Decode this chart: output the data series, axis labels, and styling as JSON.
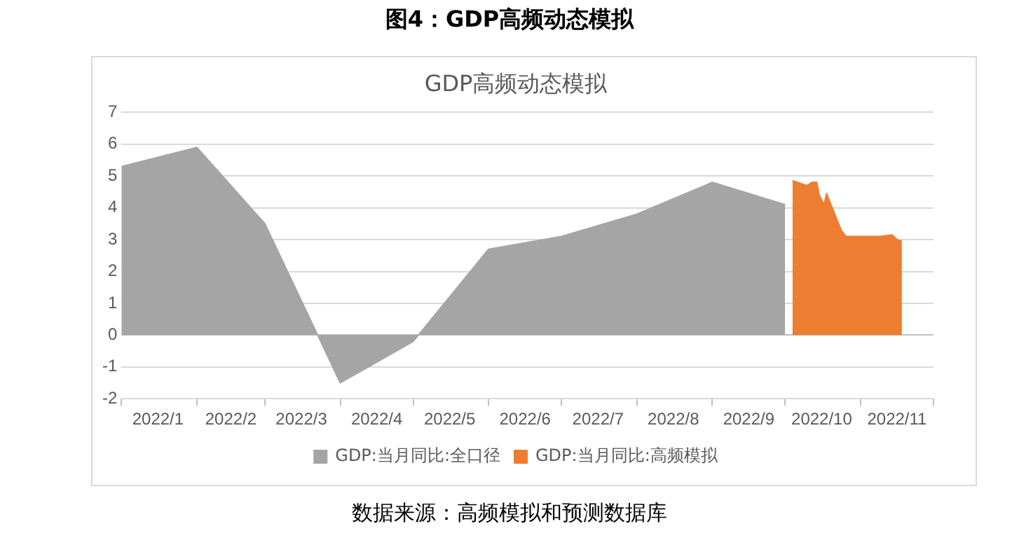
{
  "chart_data": {
    "type": "area",
    "title": "图4：GDP高频动态模拟",
    "subtitle": "GDP高频动态模拟",
    "annotations": [
      "数据来源：高频模拟和预测数据库"
    ],
    "xlim": [
      "2022-01-01",
      "2022-12-01"
    ],
    "xticks": [
      {
        "value": "2022-01-01",
        "label": null
      },
      {
        "value": "2022-01-16",
        "label": "2022/1"
      },
      {
        "value": "2022-02-01",
        "label": null
      },
      {
        "value": "2022-02-15",
        "label": "2022/2"
      },
      {
        "value": "2022-03-01",
        "label": null
      },
      {
        "value": "2022-03-16",
        "label": "2022/3"
      },
      {
        "value": "2022-04-01",
        "label": null
      },
      {
        "value": "2022-04-16",
        "label": "2022/4"
      },
      {
        "value": "2022-05-01",
        "label": null
      },
      {
        "value": "2022-05-16",
        "label": "2022/5"
      },
      {
        "value": "2022-06-01",
        "label": null
      },
      {
        "value": "2022-06-16",
        "label": "2022/6"
      },
      {
        "value": "2022-07-01",
        "label": null
      },
      {
        "value": "2022-07-16",
        "label": "2022/7"
      },
      {
        "value": "2022-08-01",
        "label": null
      },
      {
        "value": "2022-08-16",
        "label": "2022/8"
      },
      {
        "value": "2022-09-01",
        "label": null
      },
      {
        "value": "2022-09-16",
        "label": "2022/9"
      },
      {
        "value": "2022-10-01",
        "label": null
      },
      {
        "value": "2022-10-16",
        "label": "2022/10"
      },
      {
        "value": "2022-11-01",
        "label": null
      },
      {
        "value": "2022-11-16",
        "label": "2022/11"
      },
      {
        "value": "2022-12-01",
        "label": null
      }
    ],
    "ylim": [
      -2,
      7
    ],
    "yticks": [
      -2,
      -1,
      0,
      1,
      2,
      3,
      4,
      5,
      6,
      7
    ],
    "grid": "y",
    "legend": "bottom",
    "series": [
      {
        "name": "GDP:当月同比:全口径",
        "color": "#a5a5a5",
        "x": [
          "2022-01-01",
          "2022-02-01",
          "2022-03-01",
          "2022-04-01",
          "2022-05-01",
          "2022-06-01",
          "2022-07-01",
          "2022-08-01",
          "2022-09-01",
          "2022-10-01"
        ],
        "values": [
          5.3,
          5.9,
          3.5,
          -1.5,
          -0.2,
          2.7,
          3.1,
          3.8,
          4.8,
          4.1
        ]
      },
      {
        "name": "GDP:当月同比:高频模拟",
        "color": "#ed7d31",
        "x": [
          "2022-10-04",
          "2022-10-10",
          "2022-10-12",
          "2022-10-14",
          "2022-10-15",
          "2022-10-17",
          "2022-10-18",
          "2022-10-24",
          "2022-10-26",
          "2022-11-01",
          "2022-11-09",
          "2022-11-14",
          "2022-11-16",
          "2022-11-18"
        ],
        "values": [
          4.85,
          4.7,
          4.8,
          4.8,
          4.4,
          4.1,
          4.45,
          3.3,
          3.1,
          3.1,
          3.1,
          3.15,
          3.0,
          2.95
        ]
      }
    ]
  }
}
